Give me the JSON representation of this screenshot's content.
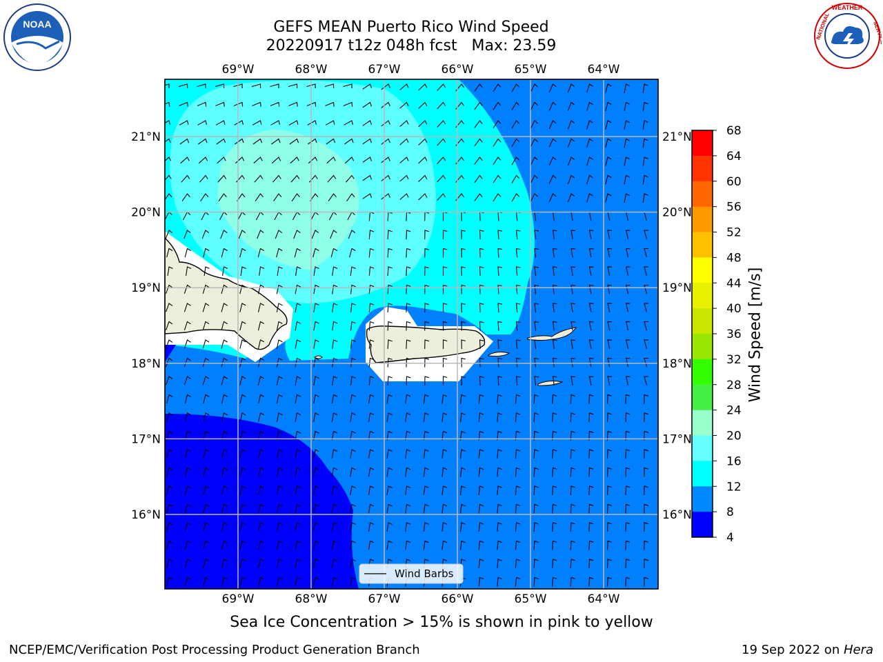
{
  "header": {
    "title_line1": "GEFS MEAN Puerto Rico Wind Speed",
    "title_line2": "20220917 t12z 048h fcst   Max: 23.59"
  },
  "logos": {
    "left": "NOAA",
    "right": "NATIONAL WEATHER SERVICE"
  },
  "map": {
    "lon_labels": [
      "69°W",
      "68°W",
      "67°W",
      "66°W",
      "65°W",
      "64°W"
    ],
    "lat_labels": [
      "21°N",
      "20°N",
      "19°N",
      "18°N",
      "17°N",
      "16°N"
    ],
    "lon_values": [
      -69,
      -68,
      -67,
      -66,
      -65,
      -64
    ],
    "lat_values": [
      21,
      20,
      19,
      18,
      17,
      16
    ],
    "legend_label": "Wind Barbs"
  },
  "colorbar": {
    "label": "Wind Speed [m/s]",
    "ticks": [
      "68",
      "64",
      "60",
      "56",
      "52",
      "48",
      "44",
      "40",
      "36",
      "32",
      "28",
      "24",
      "20",
      "16",
      "12",
      "8",
      "4"
    ],
    "colors": [
      "#ff0000",
      "#ff3300",
      "#ff6600",
      "#ff9900",
      "#ffc000",
      "#ffff00",
      "#e6f000",
      "#c8e600",
      "#99e600",
      "#33ff00",
      "#44ee44",
      "#99ffcc",
      "#66ffff",
      "#00ffff",
      "#0088ff",
      "#0000ff"
    ]
  },
  "colors": {
    "band_4_8": "#0000ff",
    "band_8_12": "#0080ff",
    "band_12_16": "#00ffff",
    "band_16_20": "#60ffff",
    "band_20_24": "#90ffe8",
    "land": "#eeeedc"
  },
  "caption": "Sea Ice Concentration > 15% is shown in pink to yellow",
  "footer": {
    "left": "NCEP/EMC/Verification Post Processing Product Generation Branch",
    "right_date": "19 Sep 2022 on ",
    "right_host": "Hera"
  }
}
